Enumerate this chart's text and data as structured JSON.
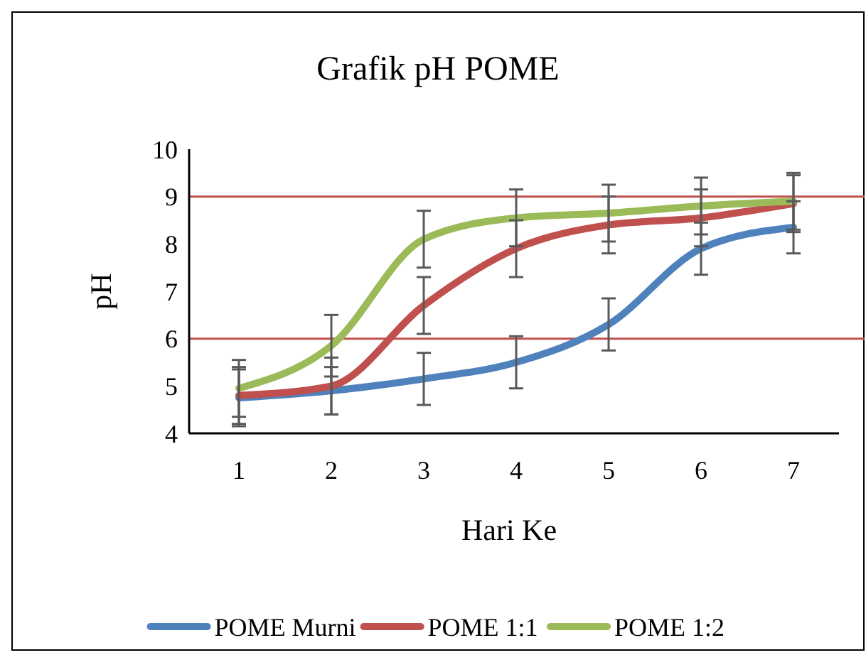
{
  "chart_data": {
    "type": "line",
    "title": "Grafik pH POME",
    "xlabel": "Hari Ke",
    "ylabel": "pH",
    "categories": [
      "1",
      "2",
      "3",
      "4",
      "5",
      "6",
      "7"
    ],
    "series": [
      {
        "name": "POME Murni",
        "color": "#4f81bd",
        "values": [
          4.75,
          4.9,
          5.15,
          5.5,
          6.3,
          7.9,
          8.35
        ],
        "errors": [
          0.6,
          0.5,
          0.55,
          0.55,
          0.55,
          0.55,
          0.55
        ]
      },
      {
        "name": "POME 1:1",
        "color": "#c0504d",
        "values": [
          4.8,
          5.0,
          6.7,
          7.9,
          8.4,
          8.55,
          8.85
        ],
        "errors": [
          0.6,
          0.6,
          0.6,
          0.6,
          0.6,
          0.6,
          0.6
        ]
      },
      {
        "name": "POME 1:2",
        "color": "#9bbb59",
        "values": [
          4.95,
          5.85,
          8.1,
          8.55,
          8.65,
          8.8,
          8.9
        ],
        "errors": [
          0.6,
          0.65,
          0.6,
          0.6,
          0.6,
          0.6,
          0.6
        ]
      }
    ],
    "ylim": [
      4,
      10
    ],
    "yticks": [
      4,
      5,
      6,
      7,
      8,
      9,
      10
    ],
    "grid": false,
    "legend": "bottom",
    "marker": "none",
    "line_style": "solid",
    "ref_lines": [
      {
        "axis": "y",
        "value": 9,
        "color": "#c0504d"
      },
      {
        "axis": "y",
        "value": 6,
        "color": "#c0504d"
      }
    ]
  }
}
